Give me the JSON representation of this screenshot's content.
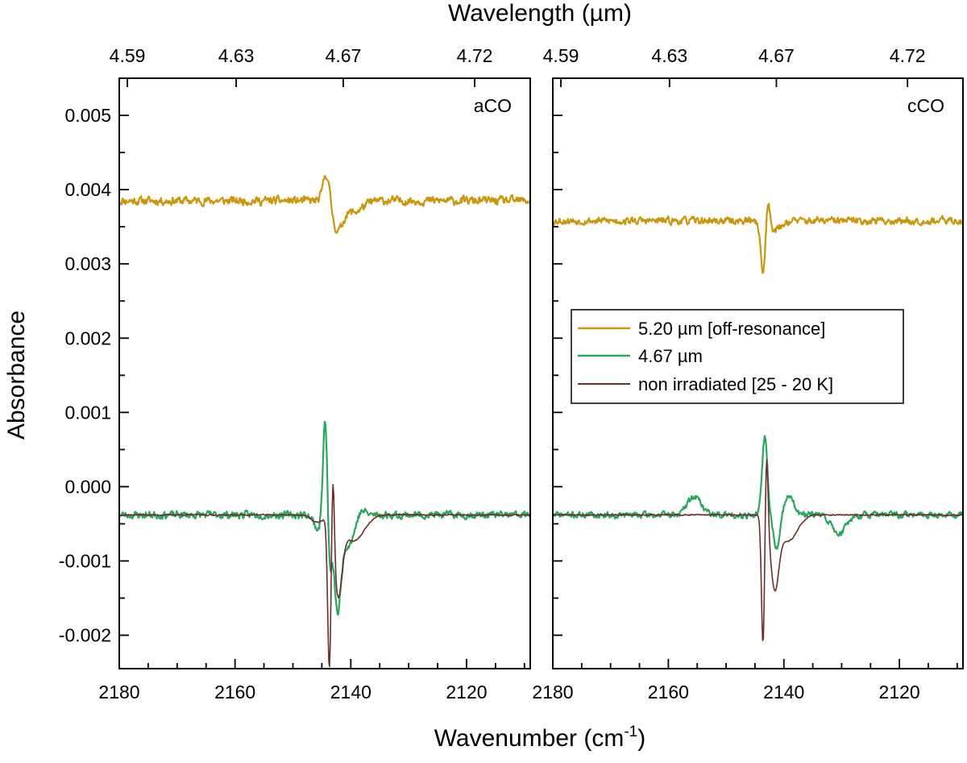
{
  "chart_data": {
    "type": "line",
    "xlabel": "Wavenumber (cm⁻¹)",
    "ylabel": "Absorbance",
    "top_xlabel": "Wavelength (µm)",
    "xlim": [
      2180,
      2109
    ],
    "ylim": [
      -0.00245,
      0.0055
    ],
    "x_ticks": [
      2180,
      2160,
      2140,
      2120
    ],
    "x_tick_labels": [
      "2180",
      "2160",
      "2140",
      "2120"
    ],
    "y_ticks": [
      -0.002,
      -0.001,
      0.0,
      0.001,
      0.002,
      0.003,
      0.004,
      0.005
    ],
    "y_tick_labels": [
      "-0.002",
      "-0.001",
      "0.000",
      "0.001",
      "0.002",
      "0.003",
      "0.004",
      "0.005"
    ],
    "top_ticks": [
      2178.6,
      2159.8,
      2141.3,
      2118.6
    ],
    "top_tick_labels": [
      "4.59",
      "4.63",
      "4.67",
      "4.72"
    ],
    "legend_entries": [
      {
        "label": "5.20 µm [off-resonance]",
        "color": "#c9960c"
      },
      {
        "label": "4.67 µm",
        "color": "#2aa660"
      },
      {
        "label": "non irradiated [25 - 20 K]",
        "color": "#6b2e2a"
      }
    ],
    "legend_position": "center-right of second panel",
    "panels": [
      {
        "label": "aCO",
        "series": [
          {
            "name": "5.20 µm [off-resonance]",
            "color": "#c9960c",
            "baseline": 0.00385,
            "noise": 8e-05,
            "seed": 11,
            "features": [
              {
                "center": 2144.2,
                "amp": 0.0004,
                "width": 0.55
              },
              {
                "center": 2142.3,
                "amp": -0.00038,
                "width": 0.9
              },
              {
                "center": 2139.5,
                "amp": -0.00015,
                "width": 1.5
              }
            ]
          },
          {
            "name": "4.67 µm",
            "color": "#2aa660",
            "baseline": -0.00038,
            "noise": 7e-05,
            "seed": 23,
            "features": [
              {
                "center": 2145.6,
                "amp": -0.0002,
                "width": 0.7
              },
              {
                "center": 2144.4,
                "amp": 0.0014,
                "width": 0.4
              },
              {
                "center": 2143.7,
                "amp": -0.0008,
                "width": 0.35
              },
              {
                "center": 2142.3,
                "amp": -0.0012,
                "width": 0.6
              },
              {
                "center": 2140.4,
                "amp": -0.0004,
                "width": 1.2
              },
              {
                "center": 2138.4,
                "amp": 0.00012,
                "width": 0.8
              }
            ]
          },
          {
            "name": "non irradiated [25 - 20 K]",
            "color": "#6b2e2a",
            "baseline": -0.00038,
            "noise": 1.2e-05,
            "seed": 37,
            "features": [
              {
                "center": 2145.8,
                "amp": -0.0001,
                "width": 1.0
              },
              {
                "center": 2143.7,
                "amp": -0.002,
                "width": 0.3
              },
              {
                "center": 2143.1,
                "amp": 0.00115,
                "width": 0.25
              },
              {
                "center": 2142.2,
                "amp": -0.001,
                "width": 0.7
              },
              {
                "center": 2139.5,
                "amp": -0.00035,
                "width": 1.8
              }
            ]
          }
        ]
      },
      {
        "label": "cCO",
        "series": [
          {
            "name": "5.20 µm [off-resonance]",
            "color": "#c9960c",
            "baseline": 0.00358,
            "noise": 7e-05,
            "seed": 53,
            "features": [
              {
                "center": 2143.6,
                "amp": -0.00073,
                "width": 0.4
              },
              {
                "center": 2142.8,
                "amp": 0.00033,
                "width": 0.4
              },
              {
                "center": 2141.5,
                "amp": -0.00012,
                "width": 1.0
              }
            ]
          },
          {
            "name": "4.67 µm",
            "color": "#2aa660",
            "baseline": -0.00038,
            "noise": 6e-05,
            "seed": 71,
            "features": [
              {
                "center": 2155.5,
                "amp": 0.00025,
                "width": 1.2
              },
              {
                "center": 2143.3,
                "amp": 0.00105,
                "width": 0.45
              },
              {
                "center": 2141.2,
                "amp": -0.00045,
                "width": 0.6
              },
              {
                "center": 2139.2,
                "amp": 0.00028,
                "width": 0.8
              },
              {
                "center": 2130.5,
                "amp": -0.00025,
                "width": 1.2
              }
            ]
          },
          {
            "name": "non irradiated [25 - 20 K]",
            "color": "#6b2e2a",
            "baseline": -0.00038,
            "noise": 1.2e-05,
            "seed": 89,
            "features": [
              {
                "center": 2143.6,
                "amp": -0.00175,
                "width": 0.28
              },
              {
                "center": 2143.0,
                "amp": 0.00105,
                "width": 0.25
              },
              {
                "center": 2141.6,
                "amp": -0.0009,
                "width": 0.7
              },
              {
                "center": 2139.3,
                "amp": -0.00035,
                "width": 1.6
              }
            ]
          }
        ]
      }
    ]
  }
}
